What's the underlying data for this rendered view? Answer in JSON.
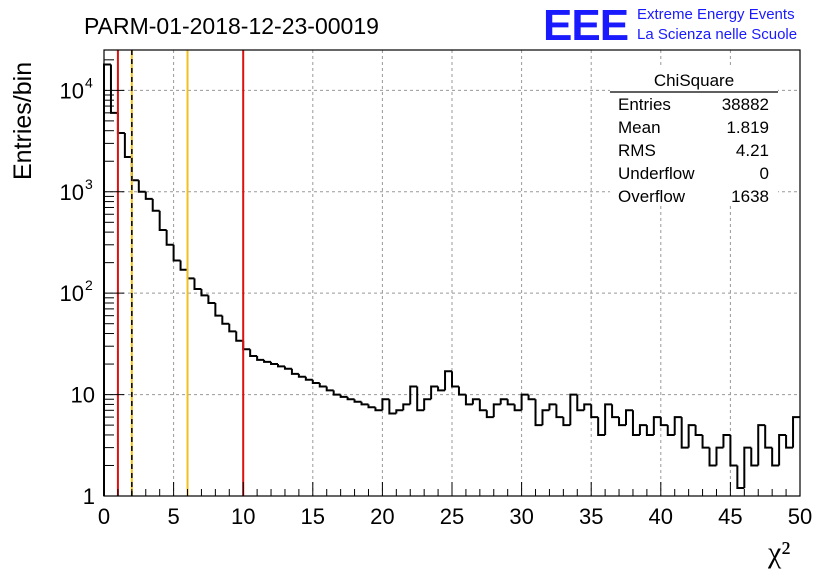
{
  "colors": {
    "histogram": "#000000",
    "grid": "#999999",
    "cut_red": "#dd1111",
    "cut_yellow": "#f0c020",
    "logo_blue": "#1a1aff"
  },
  "chart_data": {
    "type": "histogram",
    "title": "PARM-01-2018-12-23-00019",
    "xlabel": "χ²",
    "ylabel": "Entries/bin",
    "xlim": [
      0,
      50
    ],
    "ylim": [
      1,
      25000
    ],
    "yscale": "log",
    "bin_width": 0.5,
    "grid": true,
    "x_ticks": [
      "0",
      "5",
      "10",
      "15",
      "20",
      "25",
      "30",
      "35",
      "40",
      "45",
      "50"
    ],
    "y_ticks": [
      {
        "value": 1,
        "label": "1"
      },
      {
        "value": 10,
        "label": "10"
      },
      {
        "value": 100,
        "label": "10",
        "exp": "2"
      },
      {
        "value": 1000,
        "label": "10",
        "exp": "3"
      },
      {
        "value": 10000,
        "label": "10",
        "exp": "4"
      }
    ],
    "bin_contents": [
      18000,
      6000,
      3800,
      2200,
      1300,
      1000,
      850,
      650,
      420,
      300,
      210,
      170,
      140,
      110,
      95,
      80,
      60,
      50,
      42,
      34,
      28,
      24,
      22,
      21,
      20,
      19,
      18,
      16,
      15,
      14,
      13,
      12,
      11,
      10,
      9.5,
      9,
      8.5,
      8,
      7.5,
      7,
      9,
      6.5,
      7,
      8,
      12,
      7,
      9,
      12,
      11,
      17,
      12,
      10,
      8,
      9,
      7,
      6,
      8,
      9,
      8,
      7,
      10,
      9,
      5,
      7,
      8,
      6,
      5,
      10,
      7,
      8,
      6,
      4,
      8,
      6,
      5,
      7,
      4,
      5,
      4,
      6,
      5,
      4,
      6,
      3,
      5,
      4,
      3,
      2,
      3,
      4,
      2,
      1.2,
      3,
      2,
      5,
      3,
      2,
      4,
      3,
      6
    ],
    "cut_lines": [
      {
        "x": 1.0,
        "color": "red",
        "style": "solid"
      },
      {
        "x": 2.0,
        "color": "yellow",
        "style": "solid"
      },
      {
        "x": 2.0,
        "color": "black",
        "style": "dashed"
      },
      {
        "x": 6.0,
        "color": "yellow",
        "style": "solid"
      },
      {
        "x": 10.0,
        "color": "red",
        "style": "solid"
      }
    ],
    "stats": {
      "name": "ChiSquare",
      "rows": [
        {
          "label": "Entries",
          "value": "38882"
        },
        {
          "label": "Mean",
          "value": "1.819"
        },
        {
          "label": "RMS",
          "value": "4.21"
        },
        {
          "label": "Underflow",
          "value": "0"
        },
        {
          "label": "Overflow",
          "value": "1638"
        }
      ]
    }
  },
  "logo": {
    "mark": "EEE",
    "line1": "Extreme Energy Events",
    "line2": "La Scienza nelle Scuole"
  }
}
